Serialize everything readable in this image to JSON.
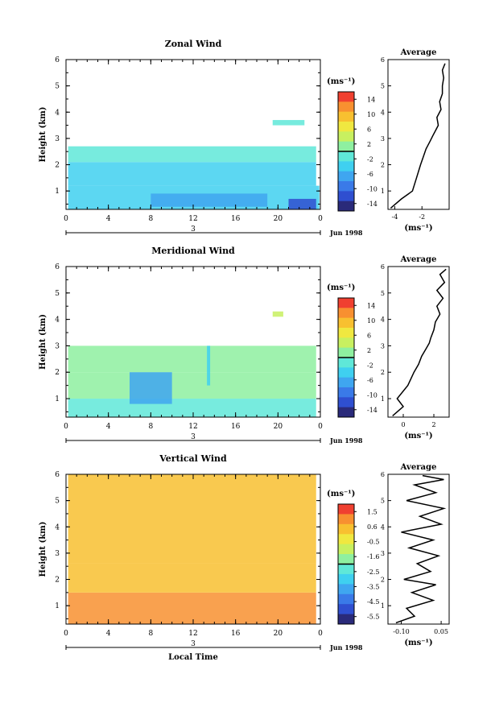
{
  "chart_data": [
    {
      "type": "heatmap",
      "title": "Zonal Wind",
      "xlabel": "",
      "ylabel": "Height (km)",
      "xlim": [
        0,
        24
      ],
      "ylim": [
        0.3,
        6
      ],
      "x_ticks": [
        "0",
        "4",
        "8",
        "12",
        "16",
        "20",
        "0"
      ],
      "y_ticks": [
        "1",
        "2",
        "3",
        "4",
        "5",
        "6"
      ],
      "date_marker": "3",
      "date_label": "Jun 1998",
      "colorbar": {
        "unit": "(ms⁻¹)",
        "ticks": [
          "14",
          "10",
          "6",
          "2",
          "-2",
          "-6",
          "-10",
          "-14"
        ],
        "min": -16,
        "max": 16
      },
      "regions": [
        {
          "x0": 0.2,
          "x1": 23.9,
          "y0": 0.3,
          "y1": 1.2,
          "value": -5
        },
        {
          "x0": 0.2,
          "x1": 23.6,
          "y0": 1.2,
          "y1": 2.1,
          "value": -3
        },
        {
          "x0": 0.2,
          "x1": 23.6,
          "y0": 2.1,
          "y1": 2.7,
          "value": -2
        },
        {
          "x0": 8.0,
          "x1": 19.0,
          "y0": 0.4,
          "y1": 0.9,
          "value": -8
        },
        {
          "x0": 21.0,
          "x1": 23.6,
          "y0": 0.3,
          "y1": 0.7,
          "value": -12
        },
        {
          "x0": 19.5,
          "x1": 22.5,
          "y0": 3.5,
          "y1": 3.7,
          "value": -1
        }
      ],
      "average_profile": {
        "title": "Average",
        "xlabel": "(ms⁻¹)",
        "x_ticks": [
          "-4",
          "-2"
        ],
        "xlim": [
          -4.5,
          0
        ],
        "ylim": [
          0.3,
          6
        ],
        "x": [
          -4.3,
          -3.5,
          -2.7,
          -2.4,
          -2.1,
          -1.9,
          -1.7,
          -1.4,
          -1.2,
          -1.0,
          -0.8,
          -0.9,
          -0.6,
          -0.7,
          -0.5,
          -0.5,
          -0.4,
          -0.5,
          -0.3
        ],
        "y": [
          0.35,
          0.7,
          1.0,
          1.5,
          2.0,
          2.3,
          2.6,
          2.9,
          3.1,
          3.3,
          3.5,
          3.8,
          4.1,
          4.4,
          4.7,
          5.0,
          5.3,
          5.6,
          5.85
        ]
      }
    },
    {
      "type": "heatmap",
      "title": "Meridional Wind",
      "xlabel": "",
      "ylabel": "Height (km)",
      "xlim": [
        0,
        24
      ],
      "ylim": [
        0.3,
        6
      ],
      "x_ticks": [
        "0",
        "4",
        "8",
        "12",
        "16",
        "20",
        "0"
      ],
      "y_ticks": [
        "1",
        "2",
        "3",
        "4",
        "5",
        "6"
      ],
      "date_marker": "3",
      "date_label": "Jun 1998",
      "colorbar": {
        "unit": "(ms⁻¹)",
        "ticks": [
          "14",
          "10",
          "6",
          "2",
          "-2",
          "-6",
          "-10",
          "-14"
        ],
        "min": -16,
        "max": 16
      },
      "regions": [
        {
          "x0": 0.2,
          "x1": 23.6,
          "y0": 0.3,
          "y1": 1.0,
          "value": -2
        },
        {
          "x0": 0.2,
          "x1": 23.6,
          "y0": 1.0,
          "y1": 2.0,
          "value": 0
        },
        {
          "x0": 0.2,
          "x1": 23.6,
          "y0": 2.0,
          "y1": 3.0,
          "value": 1
        },
        {
          "x0": 6.0,
          "x1": 10.0,
          "y0": 0.8,
          "y1": 2.0,
          "value": -7
        },
        {
          "x0": 13.3,
          "x1": 13.6,
          "y0": 1.5,
          "y1": 3.0,
          "value": -5
        },
        {
          "x0": 19.5,
          "x1": 20.5,
          "y0": 4.1,
          "y1": 4.3,
          "value": 4
        }
      ],
      "average_profile": {
        "title": "Average",
        "xlabel": "(ms⁻¹)",
        "x_ticks": [
          "0",
          "2"
        ],
        "xlim": [
          -1,
          3
        ],
        "ylim": [
          0.3,
          6
        ],
        "x": [
          -0.7,
          0.0,
          -0.4,
          0.3,
          0.7,
          1.0,
          1.2,
          1.5,
          1.7,
          1.8,
          2.0,
          2.1,
          2.4,
          2.2,
          2.6,
          2.2,
          2.7,
          2.4,
          2.8
        ],
        "y": [
          0.35,
          0.7,
          1.0,
          1.5,
          2.0,
          2.3,
          2.6,
          2.9,
          3.1,
          3.3,
          3.6,
          3.9,
          4.2,
          4.5,
          4.8,
          5.1,
          5.4,
          5.7,
          5.9
        ]
      }
    },
    {
      "type": "heatmap",
      "title": "Vertical Wind",
      "xlabel": "Local Time",
      "ylabel": "Height (km)",
      "xlim": [
        0,
        24
      ],
      "ylim": [
        0.3,
        6
      ],
      "x_ticks": [
        "0",
        "4",
        "8",
        "12",
        "16",
        "20",
        "0"
      ],
      "y_ticks": [
        "1",
        "2",
        "3",
        "4",
        "5",
        "6"
      ],
      "date_marker": "3",
      "date_label": "Jun 1998",
      "colorbar": {
        "unit": "(ms⁻¹)",
        "ticks": [
          "1.5",
          "0.6",
          "-0.5",
          "-1.6",
          "-2.5",
          "-3.5",
          "-4.5",
          "-5.5"
        ],
        "min": -6,
        "max": 2
      },
      "regions": [
        {
          "x0": 0.2,
          "x1": 23.6,
          "y0": 0.3,
          "y1": 1.5,
          "value": 0.8
        },
        {
          "x0": 0.2,
          "x1": 23.6,
          "y0": 1.5,
          "y1": 2.6,
          "value": 0.3
        },
        {
          "x0": 0.2,
          "x1": 23.6,
          "y0": 2.6,
          "y1": 6.0,
          "value": 0.2
        }
      ],
      "average_profile": {
        "title": "Average",
        "xlabel": "(ms⁻¹)",
        "x_ticks": [
          "-0.10",
          "0.05"
        ],
        "xlim": [
          -0.15,
          0.08
        ],
        "ylim": [
          0.3,
          6
        ],
        "x": [
          -0.12,
          -0.05,
          -0.08,
          0.02,
          -0.06,
          0.03,
          -0.09,
          0.01,
          -0.04,
          0.04,
          -0.07,
          0.02,
          -0.1,
          0.05,
          -0.03,
          0.06,
          -0.08,
          0.03,
          -0.05,
          0.06,
          -0.02
        ],
        "y": [
          0.35,
          0.6,
          0.9,
          1.2,
          1.5,
          1.8,
          2.0,
          2.3,
          2.6,
          2.9,
          3.2,
          3.5,
          3.8,
          4.1,
          4.4,
          4.7,
          5.0,
          5.3,
          5.6,
          5.8,
          5.95
        ]
      }
    }
  ],
  "colors": {
    "scale": [
      "#2a2a7a",
      "#2f4fd0",
      "#3a7ae8",
      "#3fa6f0",
      "#3fd0f0",
      "#5fe8d8",
      "#8ef0a0",
      "#c8f060",
      "#f0e840",
      "#f8c030",
      "#f89030",
      "#f04030"
    ],
    "axis": "#000000"
  }
}
